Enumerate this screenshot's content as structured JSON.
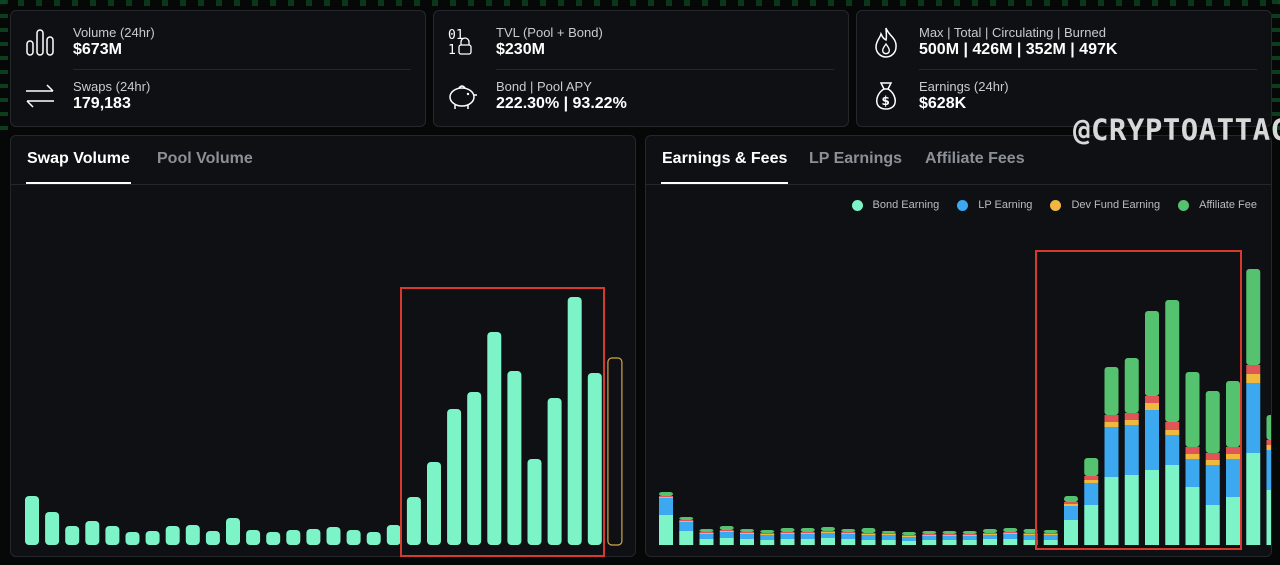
{
  "colors": {
    "accent": "#7cf4c8",
    "lp": "#3ba8f0",
    "dev": "#f0b83c",
    "aff": "#54c26e",
    "red": "#e05656",
    "highlight": "#d63a2d",
    "pending": "#d1a54a"
  },
  "stats": {
    "volume": {
      "label": "Volume (24hr)",
      "value": "$673M",
      "icon": "bar-chart-icon"
    },
    "swaps": {
      "label": "Swaps (24hr)",
      "value": "179,183",
      "icon": "swap-arrows-icon"
    },
    "tvl": {
      "label": "TVL (Pool + Bond)",
      "value": "$230M",
      "icon": "binary-lock-icon"
    },
    "bond": {
      "label": "Bond | Pool APY",
      "value": "222.30% | 93.22%",
      "icon": "piggy-bank-icon"
    },
    "supply": {
      "label": "Max | Total | Circulating | Burned",
      "value": "500M | 426M | 352M | 497K",
      "icon": "flame-icon"
    },
    "earnings": {
      "label": "Earnings (24hr)",
      "value": "$628K",
      "icon": "money-bag-icon"
    }
  },
  "volume_panel": {
    "tabs": [
      "Swap Volume",
      "Pool Volume"
    ],
    "active": 0
  },
  "earnings_panel": {
    "tabs": [
      "Earnings & Fees",
      "LP Earnings",
      "Affiliate Fees"
    ],
    "active": 0,
    "legend": [
      "Bond Earning",
      "LP Earning",
      "Dev Fund Earning",
      "Affiliate Fee"
    ]
  },
  "watermark": "@CRYPTOATTACK",
  "chart_data": [
    {
      "type": "bar",
      "title": "Swap Volume",
      "values": [
        49,
        33,
        19,
        24,
        19,
        13,
        14,
        19,
        20,
        14,
        27,
        15,
        13,
        15,
        16,
        18,
        15,
        13,
        20,
        48,
        83,
        136,
        153,
        213,
        174,
        86,
        147,
        248,
        172
      ],
      "last_pending": true
    },
    {
      "type": "bar",
      "title": "Earnings & Fees",
      "stacked": true,
      "series": [
        {
          "name": "Bond Earning",
          "values": [
            30,
            14,
            6,
            7,
            6,
            5,
            6,
            6,
            7,
            6,
            5,
            5,
            4,
            5,
            5,
            5,
            6,
            6,
            5,
            5,
            25,
            40,
            68,
            70,
            75,
            80,
            58,
            40,
            48,
            92,
            55
          ]
        },
        {
          "name": "LP Earning",
          "values": [
            17,
            9,
            5,
            6,
            5,
            5,
            5,
            5,
            5,
            5,
            5,
            5,
            4,
            4,
            4,
            4,
            4,
            5,
            5,
            5,
            14,
            22,
            50,
            50,
            60,
            30,
            28,
            40,
            38,
            70,
            40
          ]
        },
        {
          "name": "Dev Fund Earning",
          "values": [
            1,
            1,
            1,
            1,
            1,
            1,
            1,
            1,
            1,
            1,
            1,
            1,
            1,
            1,
            1,
            1,
            1,
            1,
            1,
            1,
            2,
            3,
            5,
            5,
            7,
            5,
            5,
            5,
            5,
            9,
            5
          ]
        },
        {
          "name": "",
          "values": [
            1,
            1,
            1,
            1,
            1,
            1,
            1,
            1,
            1,
            1,
            1,
            1,
            1,
            1,
            1,
            1,
            1,
            1,
            1,
            1,
            2,
            4,
            7,
            7,
            7,
            8,
            7,
            7,
            7,
            9,
            5
          ]
        },
        {
          "name": "Affiliate Fee",
          "values": [
            4,
            3,
            3,
            4,
            3,
            3,
            4,
            4,
            4,
            3,
            5,
            2,
            3,
            3,
            3,
            3,
            4,
            4,
            4,
            3,
            6,
            18,
            48,
            55,
            85,
            122,
            75,
            62,
            66,
            96,
            25
          ]
        }
      ],
      "last_pending": true
    }
  ]
}
